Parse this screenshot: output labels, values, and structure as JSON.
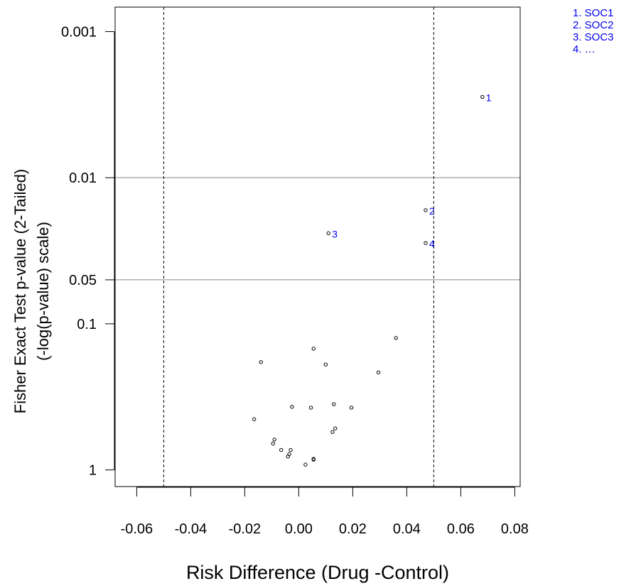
{
  "chart_data": {
    "type": "scatter",
    "xlabel": "Risk Difference (Drug -Control)",
    "ylabel": "Fisher Exact Test p-value (2-Tailed)",
    "ylabel2": "(-log(p-value) scale)",
    "y_scale": "negative log10",
    "xlim": [
      -0.068,
      0.082
    ],
    "ylim_p": [
      1.3,
      0.00068
    ],
    "x_ticks": [
      -0.06,
      -0.04,
      -0.02,
      0.0,
      0.02,
      0.04,
      0.06,
      0.08
    ],
    "x_tick_labels": [
      "-0.06",
      "-0.04",
      "-0.02",
      "0.00",
      "0.02",
      "0.04",
      "0.06",
      "0.08"
    ],
    "y_ticks": [
      0.001,
      0.01,
      0.05,
      0.1,
      1
    ],
    "y_tick_labels": [
      "0.001",
      "0.01",
      "0.05",
      "0.1",
      "1"
    ],
    "reference_lines": {
      "horizontal_p": [
        0.01,
        0.05
      ],
      "vertical_x_dashed": [
        -0.05,
        0.05
      ]
    },
    "grid": false,
    "legend_position": "top-right",
    "highlight_color": "#0000ee",
    "point_color": "#000000",
    "legend": [
      "1. SOC1",
      "2. SOC2",
      "3. SOC3",
      "4. …"
    ],
    "points": [
      {
        "x": 0.068,
        "p": 0.0028,
        "label": "1"
      },
      {
        "x": 0.047,
        "p": 0.0167,
        "label": "2"
      },
      {
        "x": 0.011,
        "p": 0.024,
        "label": "3"
      },
      {
        "x": 0.047,
        "p": 0.028,
        "label": "4"
      },
      {
        "x": 0.036,
        "p": 0.125
      },
      {
        "x": 0.0055,
        "p": 0.148
      },
      {
        "x": -0.014,
        "p": 0.183
      },
      {
        "x": 0.01,
        "p": 0.19
      },
      {
        "x": 0.0295,
        "p": 0.215
      },
      {
        "x": -0.0025,
        "p": 0.37
      },
      {
        "x": 0.0045,
        "p": 0.375
      },
      {
        "x": 0.013,
        "p": 0.355
      },
      {
        "x": 0.0195,
        "p": 0.375
      },
      {
        "x": -0.0165,
        "p": 0.45
      },
      {
        "x": 0.0135,
        "p": 0.52
      },
      {
        "x": 0.0125,
        "p": 0.55
      },
      {
        "x": -0.009,
        "p": 0.62
      },
      {
        "x": -0.0095,
        "p": 0.66
      },
      {
        "x": -0.0065,
        "p": 0.73
      },
      {
        "x": -0.003,
        "p": 0.73
      },
      {
        "x": -0.0035,
        "p": 0.78
      },
      {
        "x": -0.004,
        "p": 0.81
      },
      {
        "x": 0.0055,
        "p": 0.84
      },
      {
        "x": 0.0055,
        "p": 0.85
      },
      {
        "x": 0.0025,
        "p": 0.92
      }
    ]
  }
}
